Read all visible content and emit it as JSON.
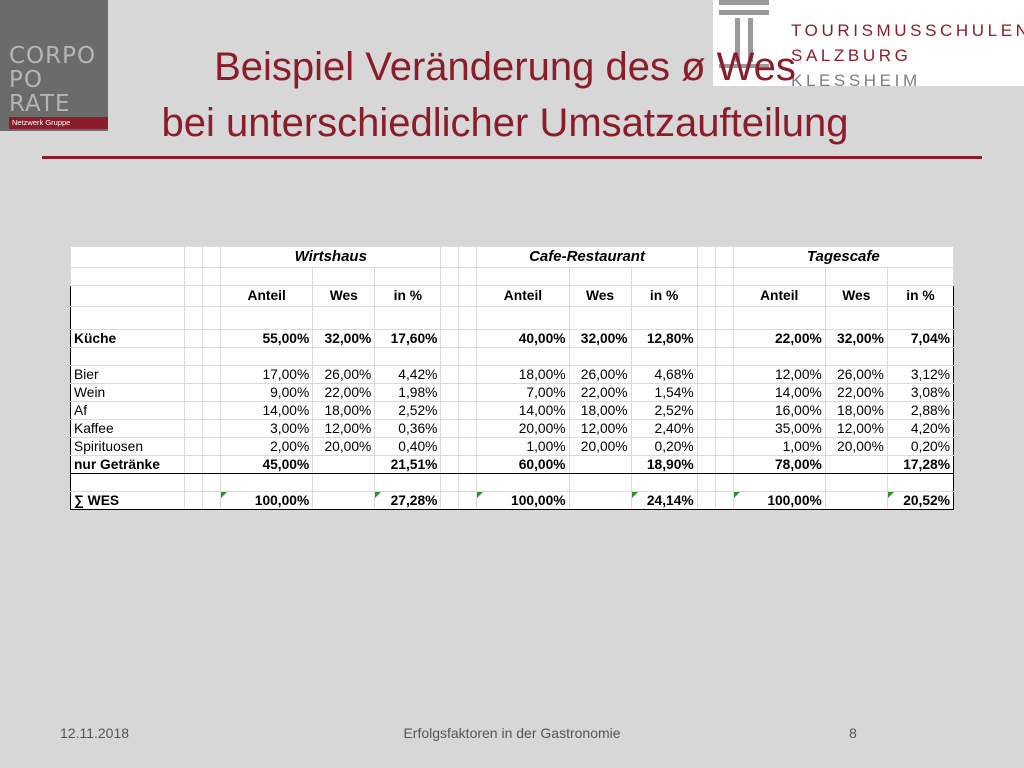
{
  "logo_left": {
    "words": [
      "CORPO",
      "PO",
      "RATE"
    ],
    "tagline": "Netzwerk Gruppe"
  },
  "logo_right": {
    "line1": "TOURISMUSSCHULEN",
    "line2": "SALZBURG",
    "line3": "KLESSHEIM"
  },
  "title": {
    "line1": "Beispiel Veränderung des ø Wes",
    "line2": "bei unterschiedlicher Umsatzaufteilung"
  },
  "table": {
    "groups": [
      "Wirtshaus",
      "Cafe-Restaurant",
      "Tagescafe"
    ],
    "columns": [
      "Anteil",
      "Wes",
      "in %"
    ],
    "kueche": {
      "label": "Küche",
      "values": [
        "55,00%",
        "32,00%",
        "17,60%",
        "40,00%",
        "32,00%",
        "12,80%",
        "22,00%",
        "32,00%",
        "7,04%"
      ]
    },
    "rows": [
      {
        "label": "Bier",
        "values": [
          "17,00%",
          "26,00%",
          "4,42%",
          "18,00%",
          "26,00%",
          "4,68%",
          "12,00%",
          "26,00%",
          "3,12%"
        ]
      },
      {
        "label": "Wein",
        "values": [
          "9,00%",
          "22,00%",
          "1,98%",
          "7,00%",
          "22,00%",
          "1,54%",
          "14,00%",
          "22,00%",
          "3,08%"
        ]
      },
      {
        "label": "Af",
        "values": [
          "14,00%",
          "18,00%",
          "2,52%",
          "14,00%",
          "18,00%",
          "2,52%",
          "16,00%",
          "18,00%",
          "2,88%"
        ]
      },
      {
        "label": "Kaffee",
        "values": [
          "3,00%",
          "12,00%",
          "0,36%",
          "20,00%",
          "12,00%",
          "2,40%",
          "35,00%",
          "12,00%",
          "4,20%"
        ]
      },
      {
        "label": "Spirituosen",
        "values": [
          "2,00%",
          "20,00%",
          "0,40%",
          "1,00%",
          "20,00%",
          "0,20%",
          "1,00%",
          "20,00%",
          "0,20%"
        ]
      }
    ],
    "getraenke": {
      "label": "nur Getränke",
      "values": [
        "45,00%",
        "",
        "21,51%",
        "60,00%",
        "",
        "18,90%",
        "78,00%",
        "",
        "17,28%"
      ]
    },
    "wes": {
      "label": "∑ WES",
      "values": [
        "100,00%",
        "",
        "27,28%",
        "100,00%",
        "",
        "24,14%",
        "100,00%",
        "",
        "20,52%"
      ]
    }
  },
  "footer": {
    "date": "12.11.2018",
    "center": "Erfolgsfaktoren in der Gastronomie",
    "page": "8"
  }
}
